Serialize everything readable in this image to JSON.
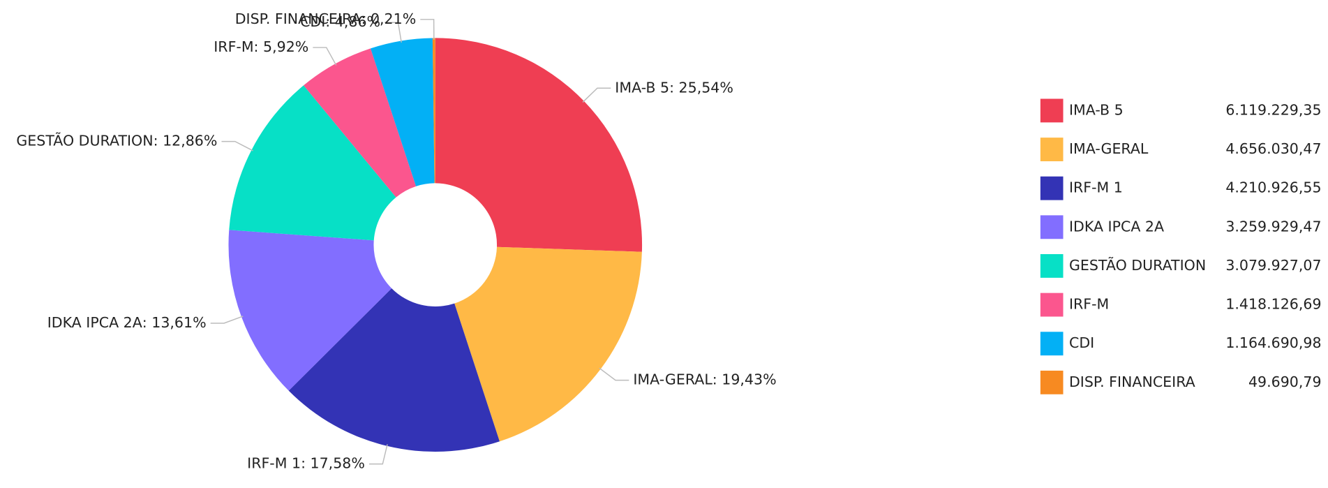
{
  "chart_data": {
    "type": "donut",
    "categories": [
      "IMA-B 5",
      "IMA-GERAL",
      "IRF-M 1",
      "IDKA IPCA 2A",
      "GESTÃO DURATION",
      "IRF-M",
      "CDI",
      "DISP. FINANCEIRA"
    ],
    "values": [
      25.54,
      19.43,
      17.58,
      13.61,
      12.86,
      5.92,
      4.86,
      0.21
    ],
    "value_labels": [
      "25,54%",
      "19,43%",
      "17,58%",
      "13,61%",
      "12,86%",
      "5,92%",
      "4,86%",
      "0,21%"
    ],
    "amounts": [
      6119229.35,
      4656030.47,
      4210926.55,
      3259929.47,
      3079927.07,
      1418126.69,
      1164690.98,
      49690.79
    ],
    "amount_labels": [
      "6.119.229,35",
      "4.656.030,47",
      "4.210.926,55",
      "3.259.929,47",
      "3.079.927,07",
      "1.418.126,69",
      "1.164.690,98",
      "49.690,79"
    ],
    "colors": [
      "#ef3e53",
      "#ffb946",
      "#3333b5",
      "#826eff",
      "#07e0c6",
      "#fb568e",
      "#03b0f5",
      "#f78a21"
    ]
  }
}
